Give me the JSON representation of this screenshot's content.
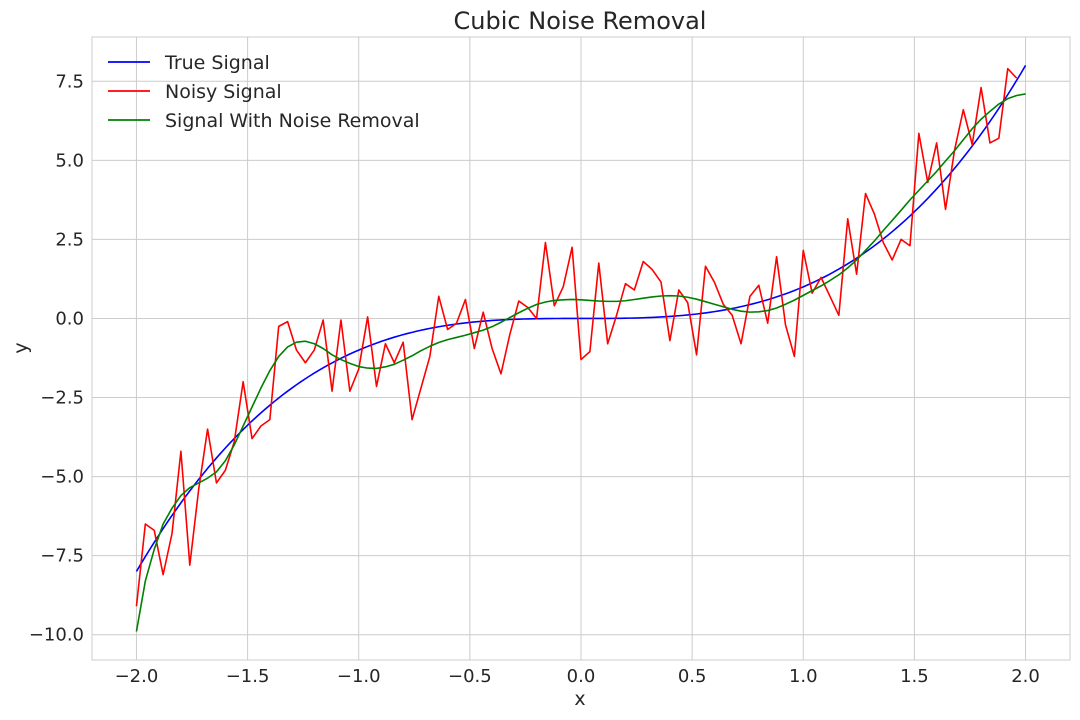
{
  "chart_data": {
    "type": "line",
    "title": "Cubic Noise Removal",
    "xlabel": "x",
    "ylabel": "y",
    "xlim": [
      -2.2,
      2.2
    ],
    "ylim": [
      -10.8,
      8.9
    ],
    "xticks": [
      -2.0,
      -1.5,
      -1.0,
      -0.5,
      0.0,
      0.5,
      1.0,
      1.5,
      2.0
    ],
    "xtick_labels": [
      "−2.0",
      "−1.5",
      "−1.0",
      "−0.5",
      "0.0",
      "0.5",
      "1.0",
      "1.5",
      "2.0"
    ],
    "yticks": [
      -10.0,
      -7.5,
      -5.0,
      -2.5,
      0.0,
      2.5,
      5.0,
      7.5
    ],
    "ytick_labels": [
      "−10.0",
      "−7.5",
      "−5.0",
      "−2.5",
      "0.0",
      "2.5",
      "5.0",
      "7.5"
    ],
    "grid": true,
    "legend_position": "top-left",
    "series": [
      {
        "name": "True Signal",
        "color": "#0000ff",
        "function": "cubic",
        "x_range": [
          -2.0,
          2.0
        ]
      },
      {
        "name": "Noisy Signal",
        "color": "#ff0000",
        "points": [
          [
            -2.0,
            -9.1
          ],
          [
            -1.96,
            -6.5
          ],
          [
            -1.92,
            -6.7
          ],
          [
            -1.88,
            -8.1
          ],
          [
            -1.84,
            -6.8
          ],
          [
            -1.8,
            -4.2
          ],
          [
            -1.76,
            -7.8
          ],
          [
            -1.72,
            -5.4
          ],
          [
            -1.68,
            -3.5
          ],
          [
            -1.64,
            -5.2
          ],
          [
            -1.6,
            -4.8
          ],
          [
            -1.56,
            -3.9
          ],
          [
            -1.52,
            -2.0
          ],
          [
            -1.48,
            -3.8
          ],
          [
            -1.44,
            -3.4
          ],
          [
            -1.4,
            -3.2
          ],
          [
            -1.36,
            -0.25
          ],
          [
            -1.32,
            -0.1
          ],
          [
            -1.28,
            -1.0
          ],
          [
            -1.24,
            -1.4
          ],
          [
            -1.2,
            -1.0
          ],
          [
            -1.16,
            -0.05
          ],
          [
            -1.12,
            -2.3
          ],
          [
            -1.08,
            -0.05
          ],
          [
            -1.04,
            -2.3
          ],
          [
            -1.0,
            -1.6
          ],
          [
            -0.96,
            0.05
          ],
          [
            -0.92,
            -2.15
          ],
          [
            -0.88,
            -0.8
          ],
          [
            -0.84,
            -1.4
          ],
          [
            -0.8,
            -0.75
          ],
          [
            -0.76,
            -3.2
          ],
          [
            -0.72,
            -2.2
          ],
          [
            -0.68,
            -1.2
          ],
          [
            -0.64,
            0.7
          ],
          [
            -0.6,
            -0.35
          ],
          [
            -0.56,
            -0.15
          ],
          [
            -0.52,
            0.6
          ],
          [
            -0.48,
            -0.95
          ],
          [
            -0.44,
            0.2
          ],
          [
            -0.4,
            -0.95
          ],
          [
            -0.36,
            -1.75
          ],
          [
            -0.32,
            -0.5
          ],
          [
            -0.28,
            0.55
          ],
          [
            -0.24,
            0.35
          ],
          [
            -0.2,
            0.0
          ],
          [
            -0.16,
            2.4
          ],
          [
            -0.12,
            0.4
          ],
          [
            -0.08,
            1.0
          ],
          [
            -0.04,
            2.25
          ],
          [
            0.0,
            -1.3
          ],
          [
            0.04,
            -1.05
          ],
          [
            0.08,
            1.75
          ],
          [
            0.12,
            -0.8
          ],
          [
            0.16,
            0.1
          ],
          [
            0.2,
            1.1
          ],
          [
            0.24,
            0.9
          ],
          [
            0.28,
            1.8
          ],
          [
            0.32,
            1.55
          ],
          [
            0.36,
            1.15
          ],
          [
            0.4,
            -0.7
          ],
          [
            0.44,
            0.9
          ],
          [
            0.48,
            0.5
          ],
          [
            0.52,
            -1.15
          ],
          [
            0.56,
            1.65
          ],
          [
            0.6,
            1.15
          ],
          [
            0.64,
            0.45
          ],
          [
            0.68,
            0.1
          ],
          [
            0.72,
            -0.8
          ],
          [
            0.76,
            0.7
          ],
          [
            0.8,
            1.05
          ],
          [
            0.84,
            -0.15
          ],
          [
            0.88,
            1.95
          ],
          [
            0.92,
            -0.2
          ],
          [
            0.96,
            -1.2
          ],
          [
            1.0,
            2.15
          ],
          [
            1.04,
            0.8
          ],
          [
            1.08,
            1.3
          ],
          [
            1.12,
            0.7
          ],
          [
            1.16,
            0.1
          ],
          [
            1.2,
            3.15
          ],
          [
            1.24,
            1.4
          ],
          [
            1.28,
            3.95
          ],
          [
            1.32,
            3.3
          ],
          [
            1.36,
            2.4
          ],
          [
            1.4,
            1.85
          ],
          [
            1.44,
            2.5
          ],
          [
            1.48,
            2.3
          ],
          [
            1.52,
            5.85
          ],
          [
            1.56,
            4.3
          ],
          [
            1.6,
            5.55
          ],
          [
            1.64,
            3.45
          ],
          [
            1.68,
            5.3
          ],
          [
            1.72,
            6.6
          ],
          [
            1.76,
            5.5
          ],
          [
            1.8,
            7.3
          ],
          [
            1.84,
            5.55
          ],
          [
            1.88,
            5.7
          ],
          [
            1.92,
            7.9
          ],
          [
            1.96,
            7.6
          ]
        ]
      },
      {
        "name": "Signal With Noise Removal",
        "color": "#008000",
        "points": [
          [
            -2.0,
            -9.9
          ],
          [
            -1.96,
            -8.3
          ],
          [
            -1.92,
            -7.3
          ],
          [
            -1.88,
            -6.5
          ],
          [
            -1.84,
            -6.0
          ],
          [
            -1.8,
            -5.6
          ],
          [
            -1.76,
            -5.35
          ],
          [
            -1.72,
            -5.2
          ],
          [
            -1.68,
            -5.05
          ],
          [
            -1.64,
            -4.85
          ],
          [
            -1.6,
            -4.5
          ],
          [
            -1.56,
            -4.0
          ],
          [
            -1.52,
            -3.4
          ],
          [
            -1.48,
            -2.8
          ],
          [
            -1.44,
            -2.2
          ],
          [
            -1.4,
            -1.65
          ],
          [
            -1.36,
            -1.2
          ],
          [
            -1.32,
            -0.9
          ],
          [
            -1.28,
            -0.75
          ],
          [
            -1.24,
            -0.72
          ],
          [
            -1.2,
            -0.8
          ],
          [
            -1.16,
            -0.95
          ],
          [
            -1.12,
            -1.15
          ],
          [
            -1.08,
            -1.3
          ],
          [
            -1.04,
            -1.42
          ],
          [
            -1.0,
            -1.52
          ],
          [
            -0.96,
            -1.57
          ],
          [
            -0.92,
            -1.58
          ],
          [
            -0.88,
            -1.53
          ],
          [
            -0.84,
            -1.45
          ],
          [
            -0.8,
            -1.32
          ],
          [
            -0.76,
            -1.18
          ],
          [
            -0.72,
            -1.02
          ],
          [
            -0.68,
            -0.88
          ],
          [
            -0.64,
            -0.76
          ],
          [
            -0.6,
            -0.67
          ],
          [
            -0.56,
            -0.6
          ],
          [
            -0.52,
            -0.53
          ],
          [
            -0.48,
            -0.45
          ],
          [
            -0.44,
            -0.37
          ],
          [
            -0.4,
            -0.26
          ],
          [
            -0.36,
            -0.12
          ],
          [
            -0.32,
            0.03
          ],
          [
            -0.28,
            0.18
          ],
          [
            -0.24,
            0.32
          ],
          [
            -0.2,
            0.44
          ],
          [
            -0.16,
            0.52
          ],
          [
            -0.12,
            0.57
          ],
          [
            -0.08,
            0.59
          ],
          [
            -0.04,
            0.6
          ],
          [
            0.0,
            0.59
          ],
          [
            0.04,
            0.57
          ],
          [
            0.08,
            0.55
          ],
          [
            0.12,
            0.54
          ],
          [
            0.16,
            0.54
          ],
          [
            0.2,
            0.56
          ],
          [
            0.24,
            0.6
          ],
          [
            0.28,
            0.64
          ],
          [
            0.32,
            0.68
          ],
          [
            0.36,
            0.71
          ],
          [
            0.4,
            0.72
          ],
          [
            0.44,
            0.71
          ],
          [
            0.48,
            0.67
          ],
          [
            0.52,
            0.61
          ],
          [
            0.56,
            0.53
          ],
          [
            0.6,
            0.45
          ],
          [
            0.64,
            0.37
          ],
          [
            0.68,
            0.29
          ],
          [
            0.72,
            0.23
          ],
          [
            0.76,
            0.2
          ],
          [
            0.8,
            0.21
          ],
          [
            0.84,
            0.25
          ],
          [
            0.88,
            0.33
          ],
          [
            0.92,
            0.45
          ],
          [
            0.96,
            0.58
          ],
          [
            1.0,
            0.73
          ],
          [
            1.04,
            0.88
          ],
          [
            1.08,
            1.03
          ],
          [
            1.12,
            1.2
          ],
          [
            1.16,
            1.38
          ],
          [
            1.2,
            1.6
          ],
          [
            1.24,
            1.85
          ],
          [
            1.28,
            2.15
          ],
          [
            1.32,
            2.45
          ],
          [
            1.36,
            2.78
          ],
          [
            1.4,
            3.1
          ],
          [
            1.44,
            3.42
          ],
          [
            1.48,
            3.75
          ],
          [
            1.52,
            4.05
          ],
          [
            1.56,
            4.35
          ],
          [
            1.6,
            4.65
          ],
          [
            1.64,
            4.98
          ],
          [
            1.68,
            5.3
          ],
          [
            1.72,
            5.65
          ],
          [
            1.76,
            6.0
          ],
          [
            1.8,
            6.3
          ],
          [
            1.84,
            6.55
          ],
          [
            1.88,
            6.78
          ],
          [
            1.92,
            6.95
          ],
          [
            1.96,
            7.05
          ],
          [
            2.0,
            7.1
          ]
        ]
      }
    ]
  }
}
